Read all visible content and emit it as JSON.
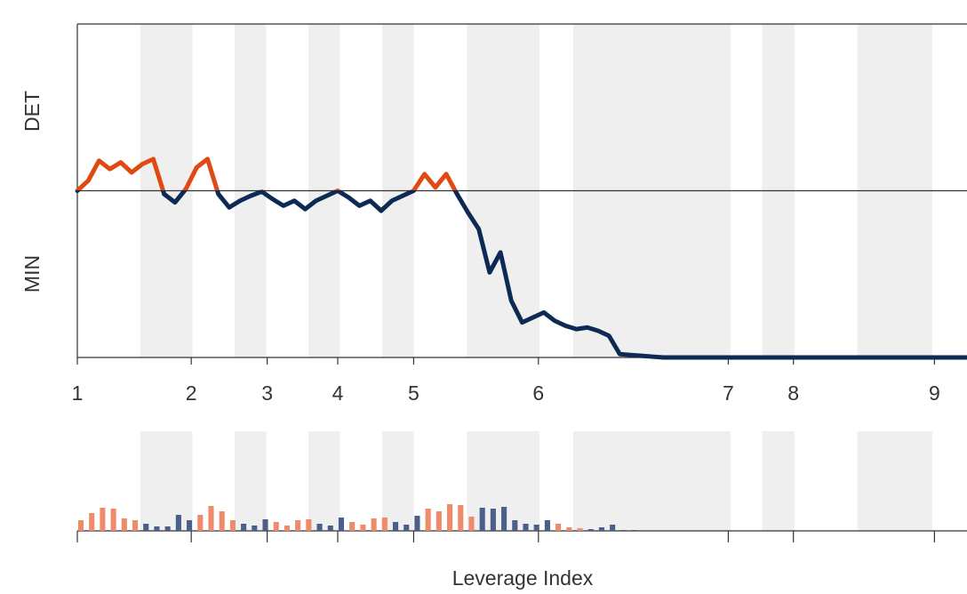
{
  "chart_data": [
    {
      "type": "line",
      "y_top_label": "DET",
      "y_bottom_label": "MIN",
      "xlim": [
        0,
        82
      ],
      "ylim": [
        -1,
        1
      ],
      "xticks": [
        {
          "value": 0,
          "label": "1"
        },
        {
          "value": 10.5,
          "label": "2"
        },
        {
          "value": 17.5,
          "label": "3"
        },
        {
          "value": 24,
          "label": "4"
        },
        {
          "value": 31,
          "label": "5"
        },
        {
          "value": 42.5,
          "label": "6"
        },
        {
          "value": 60,
          "label": "7"
        },
        {
          "value": 66,
          "label": "8"
        },
        {
          "value": 79,
          "label": "9"
        }
      ],
      "regions": [
        [
          5.8,
          10.6
        ],
        [
          14.5,
          17.4
        ],
        [
          21.3,
          24.2
        ],
        [
          28.1,
          31
        ],
        [
          35.9,
          42.6
        ],
        [
          45.7,
          60.2
        ],
        [
          63.1,
          66.1
        ],
        [
          71.9,
          78.8
        ]
      ],
      "region_color": "#efefef",
      "positive_color": "#e04a12",
      "negative_color": "#0d2a55",
      "values": [
        0,
        0.06,
        0.18,
        0.13,
        0.17,
        0.11,
        0.16,
        0.19,
        -0.02,
        -0.07,
        0.01,
        0.14,
        0.19,
        -0.02,
        -0.1,
        -0.06,
        -0.03,
        -0.005,
        -0.05,
        -0.09,
        -0.06,
        -0.11,
        -0.06,
        -0.03,
        0,
        -0.04,
        -0.09,
        -0.06,
        -0.12,
        -0.06,
        -0.03,
        0,
        0.1,
        0.02,
        0.1,
        -0.02,
        -0.13,
        -0.23,
        -0.49,
        -0.37,
        -0.66,
        -0.79,
        -0.76,
        -0.73,
        -0.78,
        -0.81,
        -0.83,
        -0.82,
        -0.84,
        -0.87,
        -0.98,
        -0.985,
        -0.99,
        -0.995,
        -1,
        -1,
        -1,
        -1,
        -1,
        -1,
        -1,
        -1,
        -1,
        -1,
        -1,
        -1,
        -1,
        -1,
        -1,
        -1,
        -1,
        -1,
        -1,
        -1,
        -1,
        -1,
        -1,
        -1,
        -1,
        -1,
        -1,
        -1,
        -1
      ]
    },
    {
      "type": "bar",
      "x_label": "Leverage Index",
      "xlim": [
        0,
        82
      ],
      "ylim": [
        0,
        40
      ],
      "values": [
        12,
        20,
        26,
        25,
        14,
        12,
        8,
        5,
        5,
        18,
        12,
        18,
        28,
        22,
        12,
        8,
        6,
        13,
        10,
        6,
        12,
        13,
        8,
        6,
        15,
        10,
        7,
        14,
        15,
        10,
        7,
        17,
        25,
        22,
        30,
        29,
        16,
        26,
        25,
        27,
        12,
        8,
        7,
        12,
        8,
        4,
        3,
        2,
        4,
        7,
        1,
        1
      ],
      "colors": [
        "#ef8a6a",
        "#ef8a6a",
        "#ef8a6a",
        "#ef8a6a",
        "#ef8a6a",
        "#ef8a6a",
        "#4a5f8a",
        "#4a5f8a",
        "#4a5f8a",
        "#4a5f8a",
        "#4a5f8a",
        "#ef8a6a",
        "#ef8a6a",
        "#ef8a6a",
        "#ef8a6a",
        "#4a5f8a",
        "#4a5f8a",
        "#4a5f8a",
        "#ef8a6a",
        "#ef8a6a",
        "#ef8a6a",
        "#ef8a6a",
        "#4a5f8a",
        "#4a5f8a",
        "#4a5f8a",
        "#ef8a6a",
        "#ef8a6a",
        "#ef8a6a",
        "#ef8a6a",
        "#4a5f8a",
        "#4a5f8a",
        "#4a5f8a",
        "#ef8a6a",
        "#ef8a6a",
        "#ef8a6a",
        "#ef8a6a",
        "#ef8a6a",
        "#4a5f8a",
        "#4a5f8a",
        "#4a5f8a",
        "#4a5f8a",
        "#4a5f8a",
        "#4a5f8a",
        "#4a5f8a",
        "#ef8a6a",
        "#ef8a6a",
        "#ef8a6a",
        "#4a5f8a",
        "#4a5f8a",
        "#4a5f8a",
        "#4a5f8a",
        "#4a5f8a"
      ]
    }
  ]
}
